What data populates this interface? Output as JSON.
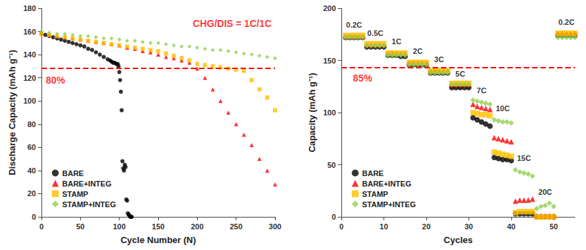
{
  "chart_data": [
    {
      "type": "scatter",
      "xlabel": "Cycle Number (N)",
      "ylabel": "Discharge Capacity (mAh g⁻¹)",
      "xlim": [
        0,
        300
      ],
      "xticks": [
        0,
        50,
        100,
        150,
        200,
        250,
        300
      ],
      "ylim": [
        0,
        180
      ],
      "yticks": [
        0,
        20,
        40,
        60,
        80,
        100,
        120,
        140,
        160,
        180
      ],
      "grid": false,
      "legend": "lower left",
      "reference_lines": [
        {
          "value": 128,
          "color": "#ff0000",
          "line_style": "dashed"
        }
      ],
      "annotations": [
        {
          "text": "CHG/DIS = 1C/1C",
          "x": 245,
          "y": 167,
          "color": "#ff0000"
        },
        {
          "text": "80%",
          "x": 18,
          "y": 118,
          "color": "#ff0000"
        }
      ],
      "series": [
        {
          "name": "BARE",
          "color": "#000000",
          "marker": "circle",
          "x": [
            0,
            5,
            10,
            15,
            20,
            25,
            30,
            35,
            40,
            45,
            50,
            55,
            60,
            65,
            70,
            75,
            80,
            85,
            88,
            90,
            92,
            94,
            96,
            98,
            99,
            100,
            101,
            102,
            103,
            104,
            105,
            106,
            107,
            108,
            109,
            110,
            111,
            112,
            113,
            114,
            115,
            116
          ],
          "values": [
            158,
            157,
            156,
            155,
            154,
            153,
            152,
            151,
            150,
            149,
            148,
            147,
            145,
            144,
            142,
            140,
            138,
            136,
            135,
            134,
            133,
            133,
            132,
            132,
            130,
            125,
            118,
            108,
            92,
            48,
            42,
            40,
            45,
            43,
            15,
            14,
            3,
            2,
            1,
            0,
            0,
            0
          ]
        },
        {
          "name": "BARE+INTEG",
          "color": "#ff0000",
          "marker": "triangle",
          "x": [
            0,
            10,
            20,
            30,
            40,
            50,
            60,
            70,
            80,
            90,
            100,
            110,
            120,
            130,
            140,
            150,
            160,
            170,
            180,
            190,
            200,
            210,
            220,
            230,
            240,
            250,
            260,
            270,
            280,
            290,
            300
          ],
          "values": [
            158,
            157,
            156,
            155,
            154,
            153,
            152,
            151,
            150,
            149,
            148,
            146,
            145,
            143,
            142,
            140,
            138,
            137,
            135,
            133,
            128,
            120,
            110,
            100,
            90,
            80,
            71,
            62,
            50,
            40,
            28
          ]
        },
        {
          "name": "STAMP",
          "color": "#ffc000",
          "marker": "square",
          "x": [
            0,
            10,
            20,
            30,
            40,
            50,
            60,
            70,
            80,
            90,
            100,
            110,
            120,
            130,
            140,
            150,
            160,
            170,
            180,
            190,
            200,
            210,
            220,
            230,
            240,
            250,
            260,
            270,
            280,
            290,
            300
          ],
          "values": [
            158,
            157,
            156,
            155,
            154,
            153,
            152,
            151,
            150,
            149,
            148,
            147,
            146,
            145,
            144,
            143,
            141,
            139,
            137,
            135,
            132,
            131,
            130,
            129,
            128,
            127,
            126,
            118,
            110,
            103,
            92
          ]
        },
        {
          "name": "STAMP+INTEG",
          "color": "#92d050",
          "marker": "diamond",
          "x": [
            0,
            10,
            20,
            30,
            40,
            50,
            60,
            70,
            80,
            90,
            100,
            110,
            120,
            130,
            140,
            150,
            160,
            170,
            180,
            190,
            200,
            210,
            220,
            230,
            240,
            250,
            260,
            270,
            280,
            290,
            300
          ],
          "values": [
            160,
            159,
            158,
            158,
            157,
            156,
            156,
            155,
            154,
            154,
            153,
            152,
            152,
            151,
            150,
            150,
            149,
            148,
            147,
            147,
            146,
            145,
            144,
            144,
            143,
            142,
            141,
            140,
            139,
            138,
            137
          ]
        }
      ]
    },
    {
      "type": "scatter",
      "xlabel": "Cycles",
      "ylabel": "Capacity (mAh g⁻¹)",
      "xlim": [
        0,
        55
      ],
      "xticks": [
        0,
        10,
        20,
        30,
        40,
        50
      ],
      "ylim": [
        0,
        200
      ],
      "yticks": [
        0,
        50,
        100,
        150,
        200
      ],
      "grid": false,
      "legend": "lower left",
      "reference_lines": [
        {
          "value": 143,
          "color": "#ff0000",
          "line_style": "dashed"
        }
      ],
      "annotations": [
        {
          "text": "85%",
          "x": 5,
          "y": 133,
          "color": "#ff0000"
        },
        {
          "text": "0.2C",
          "x": 3,
          "y": 184,
          "color": "#000000"
        },
        {
          "text": "0.5C",
          "x": 8,
          "y": 176,
          "color": "#000000"
        },
        {
          "text": "1C",
          "x": 13,
          "y": 168,
          "color": "#000000"
        },
        {
          "text": "2C",
          "x": 18,
          "y": 159,
          "color": "#000000"
        },
        {
          "text": "3C",
          "x": 23,
          "y": 151,
          "color": "#000000"
        },
        {
          "text": "5C",
          "x": 28,
          "y": 137,
          "color": "#000000"
        },
        {
          "text": "7C",
          "x": 33,
          "y": 121,
          "color": "#000000"
        },
        {
          "text": "10C",
          "x": 38,
          "y": 104,
          "color": "#000000"
        },
        {
          "text": "15C",
          "x": 43,
          "y": 56,
          "color": "#000000"
        },
        {
          "text": "20C",
          "x": 48,
          "y": 24,
          "color": "#000000"
        },
        {
          "text": "0.2C",
          "x": 53,
          "y": 187,
          "color": "#000000"
        }
      ],
      "x": [
        1,
        2,
        3,
        4,
        5,
        6,
        7,
        8,
        9,
        10,
        11,
        12,
        13,
        14,
        15,
        16,
        17,
        18,
        19,
        20,
        21,
        22,
        23,
        24,
        25,
        26,
        27,
        28,
        29,
        30,
        31,
        32,
        33,
        34,
        35,
        36,
        37,
        38,
        39,
        40,
        41,
        42,
        43,
        44,
        45,
        46,
        47,
        48,
        49,
        50,
        51,
        52,
        53,
        54,
        55
      ],
      "series": [
        {
          "name": "BARE",
          "color": "#000000",
          "marker": "circle",
          "values": [
            172,
            172,
            172,
            172,
            172,
            163,
            163,
            163,
            163,
            163,
            155,
            155,
            155,
            154,
            154,
            146,
            146,
            146,
            146,
            146,
            138,
            138,
            138,
            138,
            138,
            124,
            124,
            124,
            124,
            124,
            95,
            93,
            91,
            89,
            87,
            57,
            56,
            55,
            55,
            54,
            3,
            3,
            3,
            3,
            3,
            0,
            0,
            0,
            0,
            0,
            174,
            174,
            174,
            174,
            174
          ]
        },
        {
          "name": "BARE+INTEG",
          "color": "#ff0000",
          "marker": "triangle",
          "values": [
            173,
            173,
            173,
            173,
            173,
            165,
            165,
            165,
            165,
            165,
            157,
            157,
            157,
            157,
            157,
            148,
            148,
            148,
            148,
            148,
            140,
            140,
            140,
            140,
            140,
            127,
            127,
            127,
            127,
            127,
            108,
            106,
            105,
            104,
            103,
            76,
            75,
            74,
            73,
            72,
            15,
            16,
            16,
            16,
            17,
            1,
            1,
            1,
            1,
            1,
            176,
            176,
            176,
            176,
            176
          ]
        },
        {
          "name": "STAMP",
          "color": "#ffc000",
          "marker": "square",
          "values": [
            174,
            174,
            174,
            174,
            174,
            166,
            166,
            166,
            166,
            166,
            157,
            157,
            157,
            157,
            157,
            148,
            148,
            148,
            148,
            148,
            140,
            140,
            140,
            140,
            140,
            128,
            128,
            128,
            128,
            128,
            100,
            99,
            98,
            98,
            97,
            62,
            61,
            60,
            59,
            58,
            4,
            5,
            5,
            5,
            5,
            0,
            0,
            0,
            0,
            0,
            176,
            176,
            176,
            176,
            176
          ]
        },
        {
          "name": "STAMP+INTEG",
          "color": "#92d050",
          "marker": "diamond",
          "values": [
            172,
            172,
            172,
            172,
            172,
            164,
            164,
            164,
            164,
            164,
            155,
            155,
            155,
            155,
            155,
            146,
            146,
            146,
            146,
            146,
            138,
            138,
            138,
            138,
            138,
            127,
            127,
            127,
            127,
            127,
            112,
            111,
            110,
            109,
            108,
            93,
            92,
            91,
            91,
            90,
            45,
            43,
            42,
            41,
            39,
            8,
            10,
            11,
            13,
            10,
            172,
            172,
            172,
            172,
            172
          ]
        }
      ]
    }
  ]
}
